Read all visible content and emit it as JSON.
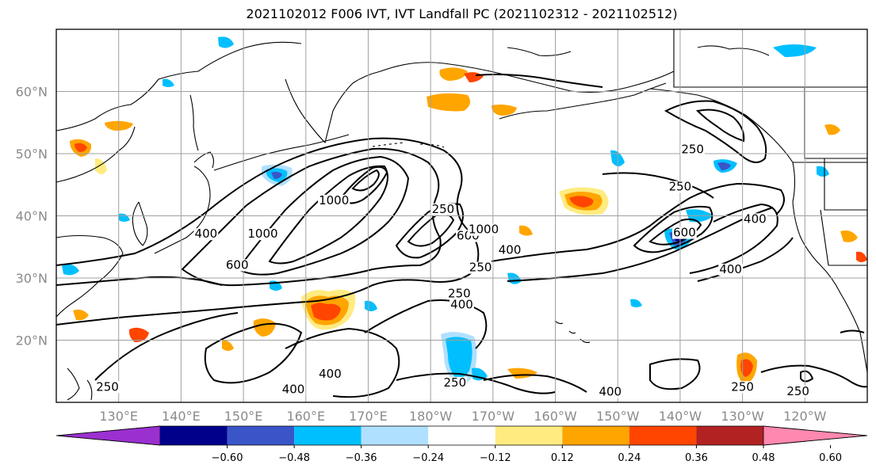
{
  "title": "2021102012 F006 IVT, IVT Landfall PC (2021102312 - 2021102512)",
  "lat_labels": [
    "60°N",
    "50°N",
    "40°N",
    "30°N",
    "20°N"
  ],
  "lon_labels": [
    "130°E",
    "140°E",
    "150°E",
    "160°E",
    "170°E",
    "180°W",
    "170°W",
    "160°W",
    "150°W",
    "140°W",
    "130°W",
    "120°W"
  ],
  "colorbar": {
    "ticks": [
      "−0.60",
      "−0.48",
      "−0.36",
      "−0.24",
      "−0.12",
      "0.12",
      "0.24",
      "0.36",
      "0.48",
      "0.60"
    ],
    "colors": [
      "#9b30d0",
      "#00008b",
      "#3a55c8",
      "#00bfff",
      "#b0e0ff",
      "#ffffff",
      "#ffeb80",
      "#ffa500",
      "#ff4500",
      "#b22222",
      "#ff88b0"
    ]
  },
  "contour_labels": [
    {
      "text": "400",
      "lon": -167.3,
      "lat": 34.0
    },
    {
      "text": "250",
      "lon": -172.0,
      "lat": 31.2
    },
    {
      "text": "250",
      "lon": -175.4,
      "lat": 27.0
    },
    {
      "text": "400",
      "lon": 144.0,
      "lat": 36.6
    },
    {
      "text": "600",
      "lon": 149.0,
      "lat": 31.6
    },
    {
      "text": "1000",
      "lon": 153.1,
      "lat": 36.6
    },
    {
      "text": "1000",
      "lon": 164.5,
      "lat": 42.0
    },
    {
      "text": "250",
      "lon": -178.0,
      "lat": 40.6
    },
    {
      "text": "600",
      "lon": -174.0,
      "lat": 36.3
    },
    {
      "text": "1000",
      "lon": -171.5,
      "lat": 37.3
    },
    {
      "text": "400",
      "lon": -175.0,
      "lat": 25.2
    },
    {
      "text": "400",
      "lon": 163.9,
      "lat": 14.1
    },
    {
      "text": "400",
      "lon": 158.0,
      "lat": 11.6
    },
    {
      "text": "250",
      "lon": -176.1,
      "lat": 12.7
    },
    {
      "text": "400",
      "lon": -151.2,
      "lat": 11.2
    },
    {
      "text": "250",
      "lon": -140.0,
      "lat": 44.2
    },
    {
      "text": "600",
      "lon": -139.3,
      "lat": 36.8
    },
    {
      "text": "400",
      "lon": -128.0,
      "lat": 39.0
    },
    {
      "text": "400",
      "lon": -131.9,
      "lat": 30.9
    },
    {
      "text": "250",
      "lon": -130.0,
      "lat": 12.0
    },
    {
      "text": "250",
      "lon": -121.1,
      "lat": 11.3
    },
    {
      "text": "250",
      "lon": -138.0,
      "lat": 50.2
    },
    {
      "text": "250",
      "lon": 128.2,
      "lat": 12.0
    }
  ]
}
